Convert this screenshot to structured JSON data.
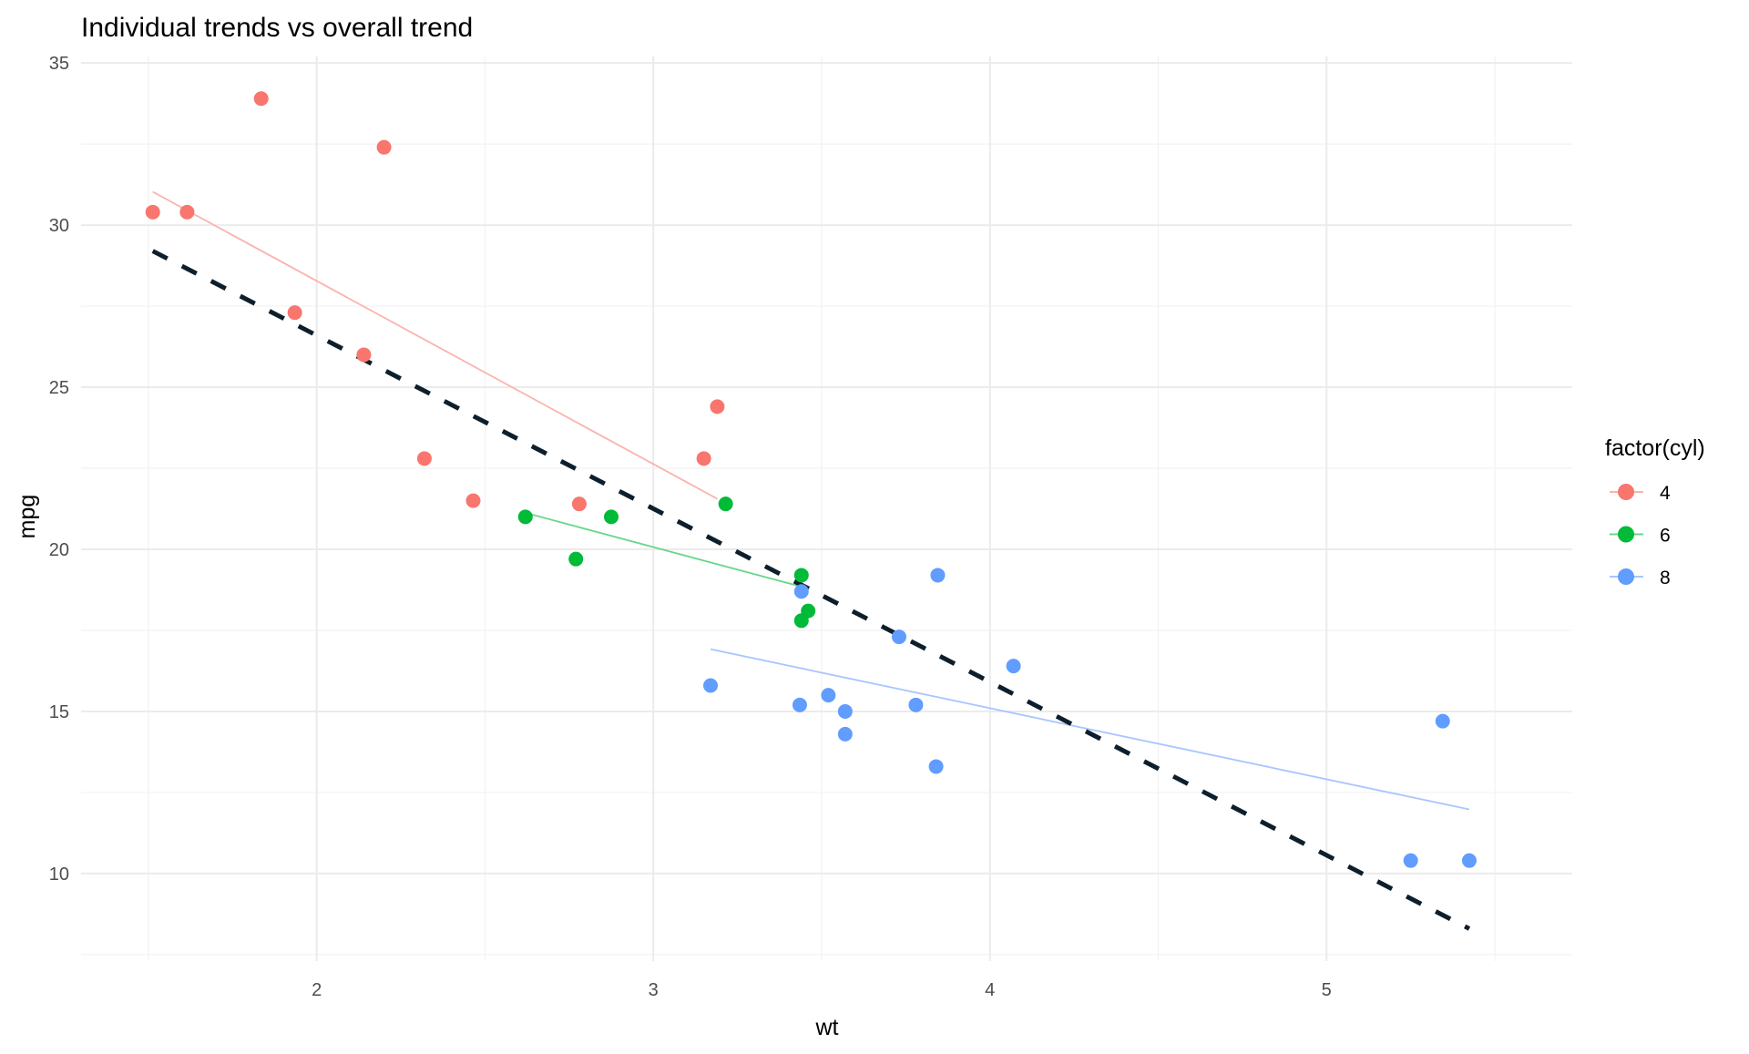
{
  "chart_data": {
    "type": "scatter",
    "title": "Individual trends vs overall trend",
    "xlabel": "wt",
    "ylabel": "mpg",
    "xlim": [
      1.3,
      5.73
    ],
    "ylim": [
      7.3,
      35.2
    ],
    "x_ticks": [
      2,
      3,
      4,
      5
    ],
    "y_ticks": [
      10,
      15,
      20,
      25,
      30,
      35
    ],
    "x_tick_labels": [
      "2",
      "3",
      "4",
      "5"
    ],
    "y_tick_labels": [
      "10",
      "15",
      "20",
      "25",
      "30",
      "35"
    ],
    "grid": true,
    "legend": {
      "title": "factor(cyl)",
      "placement": "right",
      "entries": [
        "4",
        "6",
        "8"
      ]
    },
    "colors": {
      "4": "#F8766D",
      "6": "#00BA38",
      "8": "#619CFF",
      "overall": "#0d1f2d"
    },
    "series": [
      {
        "name": "4",
        "points": [
          [
            2.32,
            22.8
          ],
          [
            3.19,
            24.4
          ],
          [
            3.15,
            22.8
          ],
          [
            2.2,
            32.4
          ],
          [
            1.615,
            30.4
          ],
          [
            1.835,
            33.9
          ],
          [
            2.465,
            21.5
          ],
          [
            1.935,
            27.3
          ],
          [
            2.14,
            26.0
          ],
          [
            1.513,
            30.4
          ],
          [
            2.78,
            21.4
          ]
        ],
        "trend": {
          "intercept": 39.571,
          "slope": -5.647,
          "x_range": [
            1.513,
            3.19
          ]
        }
      },
      {
        "name": "6",
        "points": [
          [
            2.62,
            21.0
          ],
          [
            2.875,
            21.0
          ],
          [
            3.215,
            21.4
          ],
          [
            3.46,
            18.1
          ],
          [
            3.44,
            19.2
          ],
          [
            3.44,
            17.8
          ],
          [
            2.77,
            19.7
          ]
        ],
        "trend": {
          "intercept": 28.409,
          "slope": -2.78,
          "x_range": [
            2.62,
            3.46
          ]
        }
      },
      {
        "name": "8",
        "points": [
          [
            3.44,
            18.7
          ],
          [
            3.57,
            14.3
          ],
          [
            4.07,
            16.4
          ],
          [
            3.73,
            17.3
          ],
          [
            3.78,
            15.2
          ],
          [
            5.25,
            10.4
          ],
          [
            5.424,
            10.4
          ],
          [
            5.345,
            14.7
          ],
          [
            3.52,
            15.5
          ],
          [
            3.435,
            15.2
          ],
          [
            3.84,
            13.3
          ],
          [
            3.845,
            19.2
          ],
          [
            3.17,
            15.8
          ],
          [
            3.57,
            15.0
          ]
        ],
        "trend": {
          "intercept": 23.868,
          "slope": -2.192,
          "x_range": [
            3.17,
            5.424
          ]
        }
      }
    ],
    "overall_trend": {
      "intercept": 37.285,
      "slope": -5.344,
      "x_range": [
        1.513,
        5.424
      ],
      "style": "dashed"
    }
  }
}
